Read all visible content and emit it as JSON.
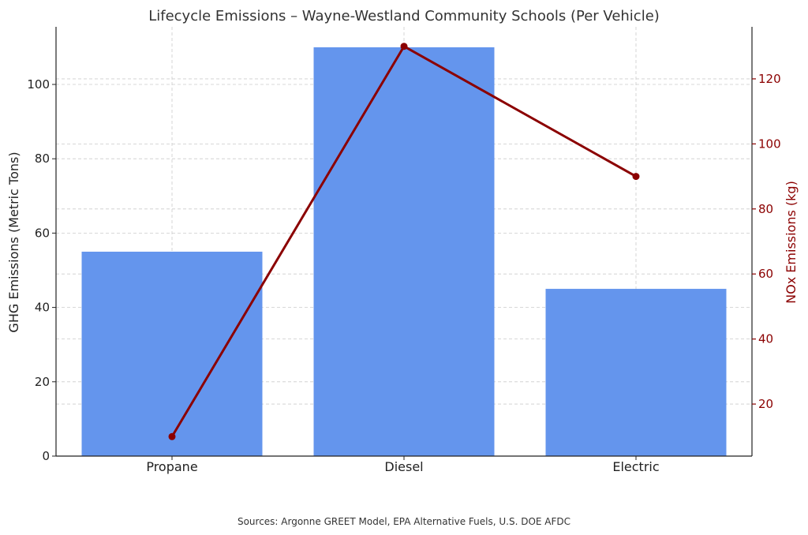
{
  "chart_data": {
    "type": "bar",
    "title": "Lifecycle Emissions – Wayne-Westland Community Schools (Per Vehicle)",
    "categories": [
      "Propane",
      "Diesel",
      "Electric"
    ],
    "series": [
      {
        "name": "",
        "type": "bar",
        "axis": "left",
        "color": "#6495ED",
        "values": [
          55,
          110,
          45
        ]
      },
      {
        "name": "",
        "type": "line",
        "axis": "right",
        "color": "#8B0000",
        "values": [
          10,
          130,
          90
        ]
      }
    ],
    "ylabel": "GHG Emissions (Metric Tons)",
    "y2label": "NOx Emissions (kg)",
    "ylim": [
      0,
      115.5
    ],
    "y2lim": [
      4,
      136
    ],
    "yticks": [
      "0",
      "20",
      "40",
      "60",
      "80",
      "100"
    ],
    "y2ticks": [
      "20",
      "40",
      "60",
      "80",
      "100",
      "120"
    ],
    "grid": true,
    "legend": "none"
  },
  "footer": {
    "source": "Sources: Argonne GREET Model, EPA Alternative Fuels, U.S. DOE AFDC"
  }
}
